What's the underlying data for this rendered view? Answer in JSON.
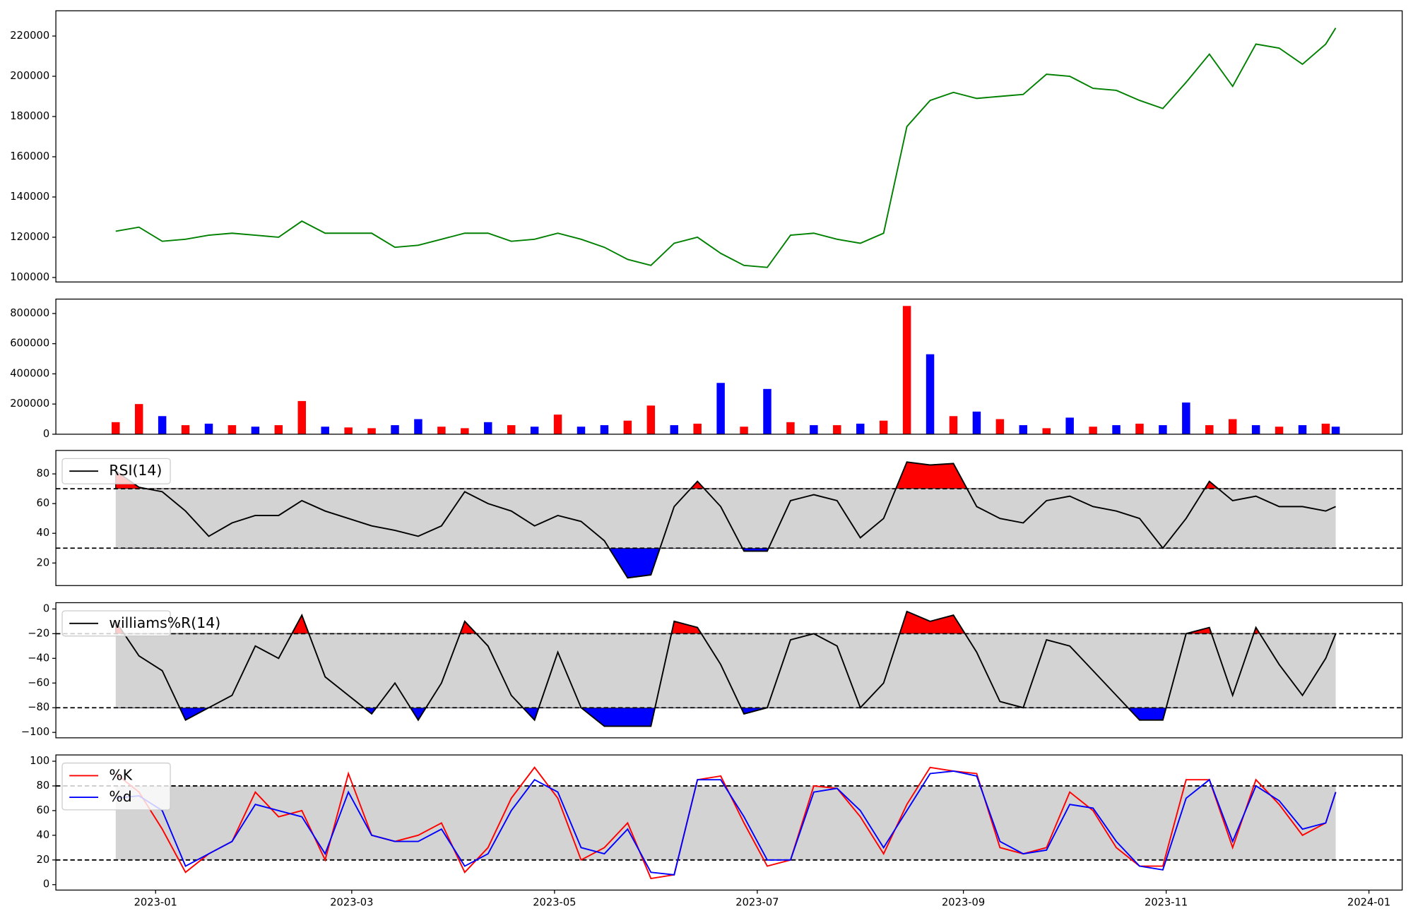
{
  "chart_data": [
    {
      "type": "line",
      "x": [
        "2022-12-20",
        "2022-12-27",
        "2023-01-03",
        "2023-01-10",
        "2023-01-17",
        "2023-01-24",
        "2023-01-31",
        "2023-02-07",
        "2023-02-14",
        "2023-02-21",
        "2023-02-28",
        "2023-03-07",
        "2023-03-14",
        "2023-03-21",
        "2023-03-28",
        "2023-04-04",
        "2023-04-11",
        "2023-04-18",
        "2023-04-25",
        "2023-05-02",
        "2023-05-09",
        "2023-05-16",
        "2023-05-23",
        "2023-05-30",
        "2023-06-06",
        "2023-06-13",
        "2023-06-20",
        "2023-06-27",
        "2023-07-04",
        "2023-07-11",
        "2023-07-18",
        "2023-07-25",
        "2023-08-01",
        "2023-08-08",
        "2023-08-15",
        "2023-08-22",
        "2023-08-29",
        "2023-09-05",
        "2023-09-12",
        "2023-09-19",
        "2023-09-26",
        "2023-10-03",
        "2023-10-10",
        "2023-10-17",
        "2023-10-24",
        "2023-10-31",
        "2023-11-07",
        "2023-11-14",
        "2023-11-21",
        "2023-11-28",
        "2023-12-05",
        "2023-12-12",
        "2023-12-19",
        "2023-12-22"
      ],
      "series": [
        {
          "color": "#008000",
          "values": [
            123000,
            125000,
            118000,
            119000,
            121000,
            122000,
            121000,
            120000,
            128000,
            122000,
            122000,
            122000,
            115000,
            116000,
            119000,
            122000,
            122000,
            118000,
            119000,
            122000,
            119000,
            115000,
            109000,
            106000,
            117000,
            120000,
            112000,
            106000,
            105000,
            121000,
            122000,
            119000,
            117000,
            122000,
            175000,
            188000,
            192000,
            189000,
            190000,
            191000,
            201000,
            200000,
            194000,
            193000,
            188000,
            184000,
            197000,
            211000,
            195000,
            216000,
            214000,
            206000,
            216000,
            224000
          ]
        }
      ],
      "xlim": [
        "2022-12-02",
        "2024-01-11"
      ],
      "ylim": [
        97760,
        232540
      ],
      "yticks": [
        100000,
        120000,
        140000,
        160000,
        180000,
        200000,
        220000
      ]
    },
    {
      "type": "bar",
      "x": [
        "2022-12-20",
        "2022-12-27",
        "2023-01-03",
        "2023-01-10",
        "2023-01-17",
        "2023-01-24",
        "2023-01-31",
        "2023-02-07",
        "2023-02-14",
        "2023-02-21",
        "2023-02-28",
        "2023-03-07",
        "2023-03-14",
        "2023-03-21",
        "2023-03-28",
        "2023-04-04",
        "2023-04-11",
        "2023-04-18",
        "2023-04-25",
        "2023-05-02",
        "2023-05-09",
        "2023-05-16",
        "2023-05-23",
        "2023-05-30",
        "2023-06-06",
        "2023-06-13",
        "2023-06-20",
        "2023-06-27",
        "2023-07-04",
        "2023-07-11",
        "2023-07-18",
        "2023-07-25",
        "2023-08-01",
        "2023-08-08",
        "2023-08-15",
        "2023-08-22",
        "2023-08-29",
        "2023-09-05",
        "2023-09-12",
        "2023-09-19",
        "2023-09-26",
        "2023-10-03",
        "2023-10-10",
        "2023-10-17",
        "2023-10-24",
        "2023-10-31",
        "2023-11-07",
        "2023-11-14",
        "2023-11-21",
        "2023-11-28",
        "2023-12-05",
        "2023-12-12",
        "2023-12-19",
        "2023-12-22"
      ],
      "values": [
        80000,
        200000,
        120000,
        60000,
        70000,
        60000,
        50000,
        60000,
        220000,
        50000,
        45000,
        40000,
        60000,
        100000,
        50000,
        40000,
        80000,
        60000,
        50000,
        130000,
        50000,
        60000,
        90000,
        190000,
        60000,
        70000,
        340000,
        50000,
        300000,
        80000,
        60000,
        60000,
        70000,
        90000,
        850000,
        530000,
        120000,
        150000,
        100000,
        60000,
        40000,
        110000,
        50000,
        60000,
        70000,
        60000,
        210000,
        60000,
        100000,
        60000,
        50000,
        60000,
        70000,
        50000
      ],
      "colors": [
        "red",
        "red",
        "blue",
        "red",
        "blue",
        "red",
        "blue",
        "red",
        "red",
        "blue",
        "red",
        "red",
        "blue",
        "blue",
        "red",
        "red",
        "blue",
        "red",
        "blue",
        "red",
        "blue",
        "blue",
        "red",
        "red",
        "blue",
        "red",
        "blue",
        "red",
        "blue",
        "red",
        "blue",
        "red",
        "blue",
        "red",
        "red",
        "blue",
        "red",
        "blue",
        "red",
        "blue",
        "red",
        "blue",
        "red",
        "blue",
        "red",
        "blue",
        "blue",
        "red",
        "red",
        "blue",
        "red",
        "blue",
        "red",
        "blue"
      ],
      "xlim": [
        "2022-12-02",
        "2024-01-11"
      ],
      "ylim": [
        0,
        895500
      ],
      "yticks": [
        0,
        200000,
        400000,
        600000,
        800000
      ]
    },
    {
      "type": "oscillator",
      "x": [
        "2022-12-20",
        "2022-12-27",
        "2023-01-03",
        "2023-01-10",
        "2023-01-17",
        "2023-01-24",
        "2023-01-31",
        "2023-02-07",
        "2023-02-14",
        "2023-02-21",
        "2023-02-28",
        "2023-03-07",
        "2023-03-14",
        "2023-03-21",
        "2023-03-28",
        "2023-04-04",
        "2023-04-11",
        "2023-04-18",
        "2023-04-25",
        "2023-05-02",
        "2023-05-09",
        "2023-05-16",
        "2023-05-23",
        "2023-05-30",
        "2023-06-06",
        "2023-06-13",
        "2023-06-20",
        "2023-06-27",
        "2023-07-04",
        "2023-07-11",
        "2023-07-18",
        "2023-07-25",
        "2023-08-01",
        "2023-08-08",
        "2023-08-15",
        "2023-08-22",
        "2023-08-29",
        "2023-09-05",
        "2023-09-12",
        "2023-09-19",
        "2023-09-26",
        "2023-10-03",
        "2023-10-10",
        "2023-10-17",
        "2023-10-24",
        "2023-10-31",
        "2023-11-07",
        "2023-11-14",
        "2023-11-21",
        "2023-11-28",
        "2023-12-05",
        "2023-12-12",
        "2023-12-19",
        "2023-12-22"
      ],
      "series": [
        {
          "name": "RSI(14)",
          "color": "black",
          "values": [
            82,
            71,
            68,
            55,
            38,
            47,
            52,
            52,
            62,
            55,
            50,
            45,
            42,
            38,
            45,
            68,
            60,
            55,
            45,
            52,
            48,
            35,
            10,
            12,
            58,
            75,
            58,
            28,
            28,
            62,
            66,
            62,
            37,
            50,
            88,
            86,
            87,
            58,
            50,
            47,
            62,
            65,
            58,
            55,
            50,
            30,
            50,
            75,
            62,
            65,
            58,
            58,
            55,
            58
          ]
        }
      ],
      "bands": [
        30,
        70
      ],
      "band_color": "#d3d3d3",
      "upper_fill": "red",
      "lower_fill": "blue",
      "legend": "upper left",
      "xlim": [
        "2022-12-02",
        "2024-01-11"
      ],
      "ylim": [
        4.8,
        95.8
      ],
      "yticks": [
        20,
        40,
        60,
        80
      ]
    },
    {
      "type": "oscillator",
      "x": [
        "2022-12-20",
        "2022-12-27",
        "2023-01-03",
        "2023-01-10",
        "2023-01-17",
        "2023-01-24",
        "2023-01-31",
        "2023-02-07",
        "2023-02-14",
        "2023-02-21",
        "2023-02-28",
        "2023-03-07",
        "2023-03-14",
        "2023-03-21",
        "2023-03-28",
        "2023-04-04",
        "2023-04-11",
        "2023-04-18",
        "2023-04-25",
        "2023-05-02",
        "2023-05-09",
        "2023-05-16",
        "2023-05-23",
        "2023-05-30",
        "2023-06-06",
        "2023-06-13",
        "2023-06-20",
        "2023-06-27",
        "2023-07-04",
        "2023-07-11",
        "2023-07-18",
        "2023-07-25",
        "2023-08-01",
        "2023-08-08",
        "2023-08-15",
        "2023-08-22",
        "2023-08-29",
        "2023-09-05",
        "2023-09-12",
        "2023-09-19",
        "2023-09-26",
        "2023-10-03",
        "2023-10-10",
        "2023-10-17",
        "2023-10-24",
        "2023-10-31",
        "2023-11-07",
        "2023-11-14",
        "2023-11-21",
        "2023-11-28",
        "2023-12-05",
        "2023-12-12",
        "2023-12-19",
        "2023-12-22"
      ],
      "series": [
        {
          "name": "williams%R(14)",
          "color": "black",
          "values": [
            -10,
            -38,
            -50,
            -90,
            -80,
            -70,
            -30,
            -40,
            -5,
            -55,
            -70,
            -85,
            -60,
            -90,
            -60,
            -10,
            -30,
            -70,
            -90,
            -35,
            -80,
            -95,
            -95,
            -95,
            -10,
            -15,
            -45,
            -85,
            -80,
            -25,
            -20,
            -30,
            -80,
            -60,
            -2,
            -10,
            -5,
            -35,
            -75,
            -80,
            -25,
            -30,
            -50,
            -70,
            -90,
            -90,
            -20,
            -15,
            -70,
            -15,
            -45,
            -70,
            -40,
            -20
          ]
        }
      ],
      "bands": [
        -80,
        -20
      ],
      "band_color": "#d3d3d3",
      "upper_fill": "red",
      "lower_fill": "blue",
      "legend": "upper left",
      "xlim": [
        "2022-12-02",
        "2024-01-11"
      ],
      "ylim": [
        -104.4,
        5.1
      ],
      "yticks": [
        {
          "value": -100,
          "label": "−100"
        },
        {
          "value": -80,
          "label": "−80"
        },
        {
          "value": -60,
          "label": "−60"
        },
        {
          "value": -40,
          "label": "−40"
        },
        {
          "value": -20,
          "label": "−20"
        },
        0
      ]
    },
    {
      "type": "oscillator",
      "x": [
        "2022-12-20",
        "2022-12-27",
        "2023-01-03",
        "2023-01-10",
        "2023-01-17",
        "2023-01-24",
        "2023-01-31",
        "2023-02-07",
        "2023-02-14",
        "2023-02-21",
        "2023-02-28",
        "2023-03-07",
        "2023-03-14",
        "2023-03-21",
        "2023-03-28",
        "2023-04-04",
        "2023-04-11",
        "2023-04-18",
        "2023-04-25",
        "2023-05-02",
        "2023-05-09",
        "2023-05-16",
        "2023-05-23",
        "2023-05-30",
        "2023-06-06",
        "2023-06-13",
        "2023-06-20",
        "2023-06-27",
        "2023-07-04",
        "2023-07-11",
        "2023-07-18",
        "2023-07-25",
        "2023-08-01",
        "2023-08-08",
        "2023-08-15",
        "2023-08-22",
        "2023-08-29",
        "2023-09-05",
        "2023-09-12",
        "2023-09-19",
        "2023-09-26",
        "2023-10-03",
        "2023-10-10",
        "2023-10-17",
        "2023-10-24",
        "2023-10-31",
        "2023-11-07",
        "2023-11-14",
        "2023-11-21",
        "2023-11-28",
        "2023-12-05",
        "2023-12-12",
        "2023-12-19",
        "2023-12-22"
      ],
      "series": [
        {
          "name": "%K",
          "color": "red",
          "values": [
            90,
            75,
            45,
            10,
            25,
            35,
            75,
            55,
            60,
            20,
            90,
            40,
            35,
            40,
            50,
            10,
            30,
            70,
            95,
            70,
            20,
            30,
            50,
            5,
            8,
            85,
            88,
            50,
            15,
            20,
            80,
            78,
            55,
            25,
            65,
            95,
            92,
            90,
            30,
            25,
            30,
            75,
            60,
            30,
            15,
            15,
            85,
            85,
            30,
            85,
            65,
            40,
            50,
            75
          ]
        },
        {
          "name": "%d",
          "color": "blue",
          "values": [
            70,
            72,
            60,
            15,
            25,
            35,
            65,
            60,
            55,
            25,
            75,
            40,
            35,
            35,
            45,
            15,
            25,
            60,
            85,
            75,
            30,
            25,
            45,
            10,
            8,
            85,
            85,
            55,
            20,
            20,
            75,
            78,
            60,
            30,
            60,
            90,
            92,
            88,
            35,
            25,
            28,
            65,
            62,
            35,
            15,
            12,
            70,
            85,
            35,
            80,
            68,
            45,
            50,
            75
          ]
        }
      ],
      "bands": [
        20,
        80
      ],
      "band_color": "#d3d3d3",
      "legend": "upper left",
      "xlim": [
        "2022-12-02",
        "2024-01-11"
      ],
      "ylim": [
        -4.4,
        105.1
      ],
      "yticks": [
        0,
        20,
        40,
        60,
        80,
        100
      ],
      "xticks": [
        {
          "value": "2023-01-01",
          "label": "2023-01"
        },
        {
          "value": "2023-03-01",
          "label": "2023-03"
        },
        {
          "value": "2023-05-01",
          "label": "2023-05"
        },
        {
          "value": "2023-07-01",
          "label": "2023-07"
        },
        {
          "value": "2023-09-01",
          "label": "2023-09"
        },
        {
          "value": "2023-11-01",
          "label": "2023-11"
        },
        {
          "value": "2024-01-01",
          "label": "2024-01"
        }
      ]
    }
  ]
}
